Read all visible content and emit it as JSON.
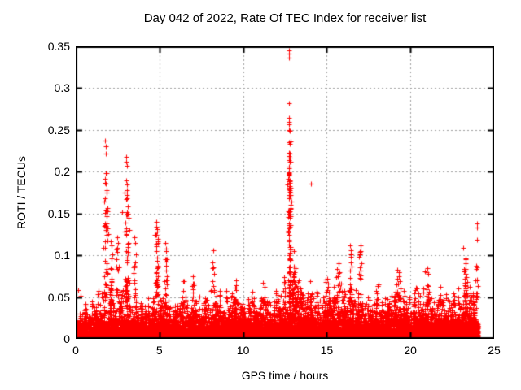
{
  "chart_data": {
    "type": "scatter",
    "title": "Day 042 of 2022, Rate Of TEC Index for receiver list",
    "xlabel": "GPS time / hours",
    "ylabel": "ROTI / TECUs",
    "xlim": [
      0,
      25
    ],
    "ylim": [
      0,
      0.35
    ],
    "xticks": [
      0,
      5,
      10,
      15,
      20,
      25
    ],
    "xtick_labels": [
      "0",
      "5",
      "10",
      "15",
      "20",
      "25"
    ],
    "yticks": [
      0,
      0.05,
      0.1,
      0.15,
      0.2,
      0.25,
      0.3,
      0.35
    ],
    "ytick_labels": [
      "0",
      "0.05",
      "0.1",
      "0.15",
      "0.2",
      "0.25",
      "0.3",
      "0.35"
    ],
    "grid": {
      "show": true,
      "color": "#a0a0a0",
      "dash": [
        2,
        3
      ]
    },
    "axis_color": "#000000",
    "background": "#ffffff",
    "marker": {
      "shape": "plus",
      "color": "#ff0000",
      "size": 7
    },
    "data_hours": [
      0,
      24.05
    ],
    "notable_points": [
      [
        0.15,
        0.058
      ],
      [
        0.3,
        0.052
      ],
      [
        1.75,
        0.237
      ],
      [
        1.78,
        0.23
      ],
      [
        1.8,
        0.222
      ],
      [
        1.77,
        0.192
      ],
      [
        1.8,
        0.186
      ],
      [
        1.85,
        0.155
      ],
      [
        1.75,
        0.151
      ],
      [
        1.9,
        0.132
      ],
      [
        1.95,
        0.125
      ],
      [
        2.1,
        0.117
      ],
      [
        2.15,
        0.112
      ],
      [
        2.5,
        0.122
      ],
      [
        2.55,
        0.115
      ],
      [
        3.0,
        0.218
      ],
      [
        3.03,
        0.212
      ],
      [
        3.06,
        0.207
      ],
      [
        3.0,
        0.19
      ],
      [
        3.05,
        0.185
      ],
      [
        3.1,
        0.158
      ],
      [
        2.75,
        0.152
      ],
      [
        3.12,
        0.15
      ],
      [
        3.17,
        0.145
      ],
      [
        3.2,
        0.13
      ],
      [
        3.5,
        0.122
      ],
      [
        3.55,
        0.115
      ],
      [
        4.8,
        0.14
      ],
      [
        4.82,
        0.134
      ],
      [
        4.85,
        0.128
      ],
      [
        4.9,
        0.12
      ],
      [
        5.35,
        0.115
      ],
      [
        5.4,
        0.108
      ],
      [
        7.0,
        0.075
      ],
      [
        8.2,
        0.106
      ],
      [
        8.15,
        0.085
      ],
      [
        8.25,
        0.078
      ],
      [
        9.6,
        0.07
      ],
      [
        11.2,
        0.067
      ],
      [
        12.72,
        0.345
      ],
      [
        12.74,
        0.341
      ],
      [
        12.73,
        0.336
      ],
      [
        12.75,
        0.282
      ],
      [
        12.73,
        0.264
      ],
      [
        12.76,
        0.257
      ],
      [
        12.74,
        0.235
      ],
      [
        12.77,
        0.233
      ],
      [
        12.75,
        0.219
      ],
      [
        12.78,
        0.212
      ],
      [
        12.74,
        0.206
      ],
      [
        12.76,
        0.198
      ],
      [
        12.73,
        0.195
      ],
      [
        12.77,
        0.19
      ],
      [
        12.75,
        0.181
      ],
      [
        12.78,
        0.176
      ],
      [
        12.8,
        0.17
      ],
      [
        13.05,
        0.105
      ],
      [
        13.3,
        0.068
      ],
      [
        14.05,
        0.186
      ],
      [
        15.7,
        0.09
      ],
      [
        16.4,
        0.112
      ],
      [
        16.42,
        0.106
      ],
      [
        16.45,
        0.101
      ],
      [
        17.0,
        0.112
      ],
      [
        17.02,
        0.105
      ],
      [
        17.05,
        0.09
      ],
      [
        17.0,
        0.082
      ],
      [
        19.2,
        0.083
      ],
      [
        19.3,
        0.075
      ],
      [
        21.0,
        0.085
      ],
      [
        21.05,
        0.078
      ],
      [
        23.15,
        0.109
      ],
      [
        23.3,
        0.096
      ],
      [
        23.32,
        0.09
      ],
      [
        23.98,
        0.138
      ],
      [
        24.0,
        0.133
      ],
      [
        24.0,
        0.119
      ],
      [
        24.05,
        0.063
      ]
    ],
    "spike_clusters": [
      [
        1.8,
        0.07,
        40,
        0.045,
        0.2
      ],
      [
        2.15,
        0.05,
        15,
        0.045,
        0.11
      ],
      [
        2.5,
        0.05,
        15,
        0.045,
        0.11
      ],
      [
        3.05,
        0.07,
        45,
        0.045,
        0.19
      ],
      [
        3.5,
        0.04,
        12,
        0.045,
        0.11
      ],
      [
        4.85,
        0.05,
        30,
        0.05,
        0.135
      ],
      [
        5.4,
        0.04,
        15,
        0.05,
        0.11
      ],
      [
        6.4,
        0.05,
        8,
        0.04,
        0.07
      ],
      [
        7.0,
        0.04,
        6,
        0.04,
        0.07
      ],
      [
        8.2,
        0.05,
        10,
        0.04,
        0.095
      ],
      [
        9.0,
        0.04,
        6,
        0.04,
        0.075
      ],
      [
        9.6,
        0.05,
        8,
        0.04,
        0.068
      ],
      [
        10.5,
        0.05,
        6,
        0.04,
        0.062
      ],
      [
        11.2,
        0.07,
        10,
        0.04,
        0.065
      ],
      [
        12.0,
        0.04,
        6,
        0.04,
        0.06
      ],
      [
        12.77,
        0.05,
        80,
        0.05,
        0.26
      ],
      [
        13.1,
        0.07,
        20,
        0.04,
        0.09
      ],
      [
        13.5,
        0.05,
        8,
        0.04,
        0.07
      ],
      [
        14.05,
        0.03,
        5,
        0.04,
        0.07
      ],
      [
        15.0,
        0.05,
        8,
        0.04,
        0.075
      ],
      [
        15.7,
        0.06,
        12,
        0.04,
        0.088
      ],
      [
        16.42,
        0.05,
        16,
        0.04,
        0.105
      ],
      [
        17.0,
        0.05,
        16,
        0.04,
        0.105
      ],
      [
        18.0,
        0.05,
        6,
        0.04,
        0.065
      ],
      [
        19.25,
        0.07,
        14,
        0.04,
        0.08
      ],
      [
        20.3,
        0.05,
        8,
        0.04,
        0.068
      ],
      [
        21.0,
        0.05,
        12,
        0.04,
        0.082
      ],
      [
        21.8,
        0.05,
        8,
        0.04,
        0.068
      ],
      [
        22.6,
        0.05,
        8,
        0.04,
        0.068
      ],
      [
        23.3,
        0.04,
        25,
        0.05,
        0.095
      ],
      [
        23.95,
        0.05,
        12,
        0.04,
        0.1
      ]
    ],
    "baseline_envelope": {
      "step_hours": 0.5,
      "values": [
        0.05,
        0.046,
        0.05,
        0.065,
        0.075,
        0.07,
        0.075,
        0.065,
        0.055,
        0.055,
        0.07,
        0.062,
        0.05,
        0.056,
        0.056,
        0.06,
        0.06,
        0.065,
        0.056,
        0.065,
        0.05,
        0.056,
        0.065,
        0.06,
        0.055,
        0.08,
        0.09,
        0.07,
        0.065,
        0.06,
        0.065,
        0.075,
        0.07,
        0.075,
        0.06,
        0.055,
        0.06,
        0.055,
        0.065,
        0.07,
        0.055,
        0.065,
        0.07,
        0.06,
        0.055,
        0.06,
        0.065,
        0.07,
        0.065
      ]
    },
    "generator": {
      "seed": 1337,
      "columns": 1700,
      "min_points_per_column": 6,
      "extra_points_per_column": 4,
      "y_floor": 0.002,
      "column_height_pow": 1.6,
      "point_depth_pow": 2.6
    }
  }
}
